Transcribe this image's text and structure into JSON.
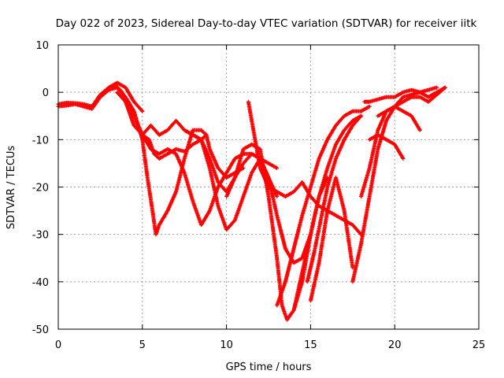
{
  "chart_data": {
    "type": "scatter",
    "title": "Day 022 of 2023, Sidereal Day-to-day VTEC variation (SDTVAR) for receiver iitk",
    "xlabel": "GPS time / hours",
    "ylabel": "SDTVAR / TECUs",
    "xlim": [
      0,
      25
    ],
    "ylim": [
      -50,
      10
    ],
    "xticks": [
      "0",
      "5",
      "10",
      "15",
      "20",
      "25"
    ],
    "yticks": [
      "10",
      "0",
      "-10",
      "-20",
      "-30",
      "-40",
      "-50"
    ],
    "grid": true,
    "marker": "+",
    "color": "#ff0000",
    "series": [
      {
        "x": [
          0.0,
          0.5,
          1.0,
          1.5,
          2.0,
          2.5,
          3.0,
          3.4,
          3.8,
          4.2,
          4.5,
          5.0,
          5.4,
          5.7,
          6.0,
          6.5,
          7.0,
          7.5,
          8.0,
          8.5,
          8.8
        ],
        "y": [
          -3,
          -2.8,
          -2.5,
          -3,
          -3.5,
          -1,
          1,
          1.5,
          0,
          -4,
          -7,
          -9,
          -10,
          -13,
          -14,
          -13,
          -12,
          -12.5,
          -11,
          -10,
          -9
        ]
      },
      {
        "x": [
          0.0,
          0.5,
          1.0,
          1.5,
          2.0,
          2.5,
          3.0,
          3.5,
          4.0,
          4.5,
          5.0
        ],
        "y": [
          -2.5,
          -2.2,
          -2.3,
          -2.5,
          -3,
          -0.5,
          1,
          2,
          1,
          -2,
          -4
        ]
      },
      {
        "x": [
          2.5,
          3.0,
          3.5,
          4.0,
          4.5,
          5.0,
          5.3,
          5.6,
          5.8,
          6.0,
          6.5,
          7.0,
          7.5,
          8.0,
          8.5,
          8.8,
          9.0,
          9.5,
          10.0,
          10.5,
          11.0
        ],
        "y": [
          -1,
          0.5,
          1,
          -1,
          -4,
          -10,
          -18,
          -25,
          -30,
          -28,
          -25,
          -21,
          -14,
          -8,
          -8,
          -9,
          -12,
          -16,
          -18,
          -17,
          -16
        ]
      },
      {
        "x": [
          3.5,
          4.0,
          4.5,
          5.0,
          5.5,
          6.0,
          6.5,
          7.0,
          7.5,
          8.0,
          8.5,
          9.0,
          9.5,
          10.0,
          10.5,
          11.0,
          11.5,
          12.0,
          12.5,
          13.0
        ],
        "y": [
          0,
          -2,
          -5,
          -9,
          -12,
          -13,
          -12,
          -13,
          -17,
          -23,
          -28,
          -25,
          -20,
          -17,
          -14,
          -13,
          -13,
          -14,
          -15,
          -16
        ]
      },
      {
        "x": [
          5.0,
          5.5,
          6.0,
          6.5,
          7.0,
          7.5,
          8.0,
          8.5,
          9.0,
          9.5,
          10.0,
          10.5,
          11.0,
          11.5,
          12.0,
          12.5,
          13.0
        ],
        "y": [
          -9,
          -7,
          -9,
          -8,
          -6,
          -8,
          -9,
          -10,
          -14,
          -19,
          -21,
          -18,
          -15,
          -13,
          -14,
          -18,
          -22
        ]
      },
      {
        "x": [
          7.5,
          8.0,
          8.5,
          9.0,
          9.5,
          10.0,
          10.5,
          11.0,
          11.5,
          12.0,
          12.5,
          13.0,
          13.5,
          14.0,
          14.5,
          15.0
        ],
        "y": [
          -8,
          -9,
          -10,
          -16,
          -24,
          -29,
          -27,
          -22,
          -17,
          -14,
          -18,
          -26,
          -33,
          -36,
          -35,
          -30
        ]
      },
      {
        "x": [
          10.0,
          10.5,
          11.0,
          11.5,
          12.0,
          12.5,
          13.0,
          13.3,
          13.6,
          14.0,
          14.5,
          15.0,
          15.5,
          16.0
        ],
        "y": [
          -22,
          -18,
          -12,
          -11,
          -12,
          -22,
          -35,
          -45,
          -48,
          -46,
          -40,
          -30,
          -22,
          -18
        ]
      },
      {
        "x": [
          11.3,
          11.6,
          12.0,
          12.5,
          13.0,
          13.5,
          14.0,
          14.5,
          15.0,
          15.5,
          16.0,
          16.5,
          17.0,
          17.5,
          18.0
        ],
        "y": [
          -2,
          -8,
          -16,
          -20,
          -21,
          -22,
          -21,
          -19,
          -22,
          -24,
          -25,
          -26,
          -27,
          -28,
          -30
        ]
      },
      {
        "x": [
          13.0,
          13.5,
          14.0,
          14.5,
          15.0,
          15.5,
          16.0,
          16.5,
          17.0,
          17.5,
          18.0,
          18.5
        ],
        "y": [
          -45,
          -40,
          -33,
          -26,
          -20,
          -14,
          -10,
          -7,
          -5,
          -4,
          -4,
          -3
        ]
      },
      {
        "x": [
          14.0,
          14.5,
          15.0,
          15.5,
          16.0,
          16.5,
          17.0,
          17.5,
          18.0
        ],
        "y": [
          -46,
          -38,
          -30,
          -22,
          -16,
          -11,
          -8,
          -6,
          -5
        ]
      },
      {
        "x": [
          14.8,
          15.2,
          15.6,
          16.0,
          16.5,
          17.0,
          17.5,
          18.0
        ],
        "y": [
          -40,
          -34,
          -27,
          -20,
          -14,
          -10,
          -7,
          -5
        ]
      },
      {
        "x": [
          15.0,
          15.5,
          16.0,
          16.5,
          17.0,
          17.5
        ],
        "y": [
          -44,
          -36,
          -25,
          -18,
          -25,
          -37
        ]
      },
      {
        "x": [
          17.5,
          18.0,
          18.5,
          19.0,
          19.5,
          20.0,
          20.5,
          21.0,
          21.5,
          22.0,
          22.5
        ],
        "y": [
          -40,
          -32,
          -22,
          -12,
          -6,
          -3,
          -1,
          -0.5,
          0,
          0.5,
          1
        ]
      },
      {
        "x": [
          18.0,
          18.5,
          19.0,
          19.5,
          20.0,
          20.5,
          21.0,
          21.5
        ],
        "y": [
          -22,
          -16,
          -8,
          -4,
          -3,
          -4,
          -5,
          -8
        ]
      },
      {
        "x": [
          18.5,
          19.0,
          19.5,
          20.0,
          20.5
        ],
        "y": [
          -10,
          -9,
          -10,
          -11,
          -14
        ]
      },
      {
        "x": [
          18.2,
          18.5,
          19.0,
          19.5,
          20.0,
          20.5,
          21.0,
          21.5,
          22.0,
          22.5,
          23.0
        ],
        "y": [
          -2,
          -2,
          -1.5,
          -1,
          -1,
          0,
          0.5,
          0,
          -1,
          0,
          1
        ]
      },
      {
        "x": [
          19.0,
          19.5,
          20.0,
          20.5,
          21.0,
          21.5,
          22.0,
          22.5,
          23.0
        ],
        "y": [
          -5,
          -4,
          -3,
          -2,
          -1,
          -1,
          -2,
          -0.5,
          1
        ]
      }
    ]
  }
}
